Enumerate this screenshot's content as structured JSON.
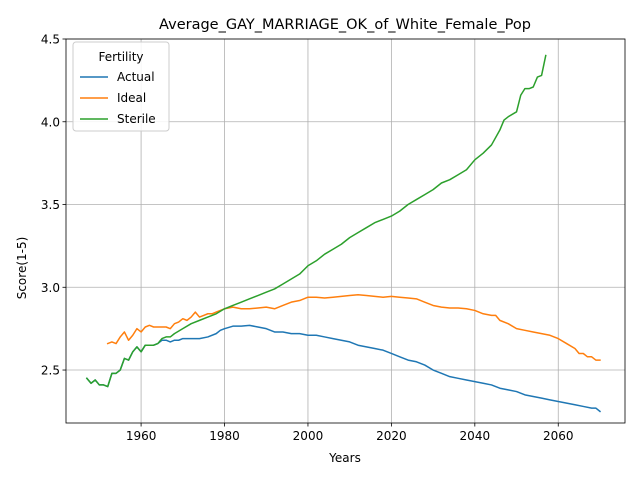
{
  "chart_data": {
    "type": "line",
    "title": "Average_GAY_MARRIAGE_OK_of_White_Female_Pop",
    "xlabel": "Years",
    "ylabel": "Score(1-5)",
    "xlim": [
      1942,
      2076
    ],
    "ylim": [
      2.18,
      4.5
    ],
    "xticks": [
      1960,
      1980,
      2000,
      2020,
      2040,
      2060
    ],
    "yticks": [
      2.5,
      3.0,
      3.5,
      4.0,
      4.5
    ],
    "xtick_labels": [
      "1960",
      "1980",
      "2000",
      "2020",
      "2040",
      "2060"
    ],
    "ytick_labels": [
      "2.5",
      "3.0",
      "3.5",
      "4.0",
      "4.5"
    ],
    "grid": true,
    "legend": {
      "title": "Fertility",
      "placement": "top-left",
      "entries": [
        "Actual",
        "Ideal",
        "Sterile"
      ]
    },
    "series": [
      {
        "name": "Actual",
        "color": "#1f77b4",
        "points": [
          [
            1947,
            2.45
          ],
          [
            1948,
            2.42
          ],
          [
            1949,
            2.44
          ],
          [
            1950,
            2.41
          ],
          [
            1951,
            2.41
          ],
          [
            1952,
            2.4
          ],
          [
            1953,
            2.48
          ],
          [
            1954,
            2.48
          ],
          [
            1955,
            2.5
          ],
          [
            1956,
            2.57
          ],
          [
            1957,
            2.56
          ],
          [
            1958,
            2.61
          ],
          [
            1959,
            2.64
          ],
          [
            1960,
            2.61
          ],
          [
            1961,
            2.65
          ],
          [
            1962,
            2.65
          ],
          [
            1963,
            2.65
          ],
          [
            1964,
            2.66
          ],
          [
            1965,
            2.68
          ],
          [
            1966,
            2.68
          ],
          [
            1967,
            2.67
          ],
          [
            1968,
            2.68
          ],
          [
            1969,
            2.68
          ],
          [
            1970,
            2.69
          ],
          [
            1972,
            2.69
          ],
          [
            1974,
            2.69
          ],
          [
            1976,
            2.7
          ],
          [
            1978,
            2.72
          ],
          [
            1979,
            2.74
          ],
          [
            1980,
            2.75
          ],
          [
            1982,
            2.765
          ],
          [
            1984,
            2.765
          ],
          [
            1986,
            2.77
          ],
          [
            1988,
            2.76
          ],
          [
            1990,
            2.75
          ],
          [
            1992,
            2.73
          ],
          [
            1994,
            2.73
          ],
          [
            1996,
            2.72
          ],
          [
            1998,
            2.72
          ],
          [
            2000,
            2.71
          ],
          [
            2002,
            2.71
          ],
          [
            2004,
            2.7
          ],
          [
            2006,
            2.69
          ],
          [
            2008,
            2.68
          ],
          [
            2010,
            2.67
          ],
          [
            2012,
            2.65
          ],
          [
            2014,
            2.64
          ],
          [
            2016,
            2.63
          ],
          [
            2018,
            2.62
          ],
          [
            2020,
            2.6
          ],
          [
            2022,
            2.58
          ],
          [
            2024,
            2.56
          ],
          [
            2026,
            2.55
          ],
          [
            2028,
            2.53
          ],
          [
            2030,
            2.5
          ],
          [
            2032,
            2.48
          ],
          [
            2034,
            2.46
          ],
          [
            2036,
            2.45
          ],
          [
            2038,
            2.44
          ],
          [
            2040,
            2.43
          ],
          [
            2042,
            2.42
          ],
          [
            2044,
            2.41
          ],
          [
            2046,
            2.39
          ],
          [
            2048,
            2.38
          ],
          [
            2050,
            2.37
          ],
          [
            2052,
            2.35
          ],
          [
            2054,
            2.34
          ],
          [
            2056,
            2.33
          ],
          [
            2058,
            2.32
          ],
          [
            2060,
            2.31
          ],
          [
            2062,
            2.3
          ],
          [
            2064,
            2.29
          ],
          [
            2066,
            2.28
          ],
          [
            2068,
            2.27
          ],
          [
            2069,
            2.27
          ],
          [
            2070,
            2.25
          ]
        ]
      },
      {
        "name": "Ideal",
        "color": "#ff7f0e",
        "points": [
          [
            1952,
            2.66
          ],
          [
            1953,
            2.67
          ],
          [
            1954,
            2.66
          ],
          [
            1955,
            2.7
          ],
          [
            1956,
            2.73
          ],
          [
            1957,
            2.68
          ],
          [
            1958,
            2.71
          ],
          [
            1959,
            2.75
          ],
          [
            1960,
            2.73
          ],
          [
            1961,
            2.76
          ],
          [
            1962,
            2.77
          ],
          [
            1963,
            2.76
          ],
          [
            1964,
            2.76
          ],
          [
            1965,
            2.76
          ],
          [
            1966,
            2.76
          ],
          [
            1967,
            2.75
          ],
          [
            1968,
            2.78
          ],
          [
            1969,
            2.79
          ],
          [
            1970,
            2.81
          ],
          [
            1971,
            2.8
          ],
          [
            1972,
            2.82
          ],
          [
            1973,
            2.85
          ],
          [
            1974,
            2.82
          ],
          [
            1975,
            2.83
          ],
          [
            1976,
            2.84
          ],
          [
            1977,
            2.84
          ],
          [
            1978,
            2.85
          ],
          [
            1980,
            2.87
          ],
          [
            1982,
            2.88
          ],
          [
            1984,
            2.87
          ],
          [
            1986,
            2.87
          ],
          [
            1988,
            2.875
          ],
          [
            1990,
            2.88
          ],
          [
            1992,
            2.87
          ],
          [
            1994,
            2.89
          ],
          [
            1996,
            2.91
          ],
          [
            1998,
            2.92
          ],
          [
            2000,
            2.94
          ],
          [
            2002,
            2.94
          ],
          [
            2004,
            2.935
          ],
          [
            2006,
            2.94
          ],
          [
            2008,
            2.945
          ],
          [
            2010,
            2.95
          ],
          [
            2012,
            2.955
          ],
          [
            2014,
            2.95
          ],
          [
            2016,
            2.945
          ],
          [
            2018,
            2.94
          ],
          [
            2020,
            2.945
          ],
          [
            2022,
            2.94
          ],
          [
            2024,
            2.935
          ],
          [
            2026,
            2.93
          ],
          [
            2028,
            2.91
          ],
          [
            2030,
            2.89
          ],
          [
            2032,
            2.88
          ],
          [
            2034,
            2.875
          ],
          [
            2036,
            2.875
          ],
          [
            2038,
            2.87
          ],
          [
            2040,
            2.86
          ],
          [
            2042,
            2.84
          ],
          [
            2044,
            2.83
          ],
          [
            2045,
            2.83
          ],
          [
            2046,
            2.8
          ],
          [
            2048,
            2.78
          ],
          [
            2050,
            2.75
          ],
          [
            2052,
            2.74
          ],
          [
            2054,
            2.73
          ],
          [
            2056,
            2.72
          ],
          [
            2058,
            2.71
          ],
          [
            2060,
            2.69
          ],
          [
            2062,
            2.66
          ],
          [
            2064,
            2.63
          ],
          [
            2065,
            2.6
          ],
          [
            2066,
            2.6
          ],
          [
            2067,
            2.58
          ],
          [
            2068,
            2.58
          ],
          [
            2069,
            2.56
          ],
          [
            2070,
            2.56
          ]
        ]
      },
      {
        "name": "Sterile",
        "color": "#2ca02c",
        "points": [
          [
            1947,
            2.45
          ],
          [
            1948,
            2.42
          ],
          [
            1949,
            2.44
          ],
          [
            1950,
            2.41
          ],
          [
            1951,
            2.41
          ],
          [
            1952,
            2.4
          ],
          [
            1953,
            2.48
          ],
          [
            1954,
            2.48
          ],
          [
            1955,
            2.5
          ],
          [
            1956,
            2.57
          ],
          [
            1957,
            2.56
          ],
          [
            1958,
            2.61
          ],
          [
            1959,
            2.64
          ],
          [
            1960,
            2.61
          ],
          [
            1961,
            2.65
          ],
          [
            1962,
            2.65
          ],
          [
            1963,
            2.65
          ],
          [
            1964,
            2.66
          ],
          [
            1965,
            2.69
          ],
          [
            1966,
            2.7
          ],
          [
            1967,
            2.7
          ],
          [
            1968,
            2.72
          ],
          [
            1970,
            2.75
          ],
          [
            1972,
            2.78
          ],
          [
            1974,
            2.8
          ],
          [
            1976,
            2.82
          ],
          [
            1978,
            2.84
          ],
          [
            1980,
            2.87
          ],
          [
            1982,
            2.89
          ],
          [
            1984,
            2.91
          ],
          [
            1986,
            2.93
          ],
          [
            1988,
            2.95
          ],
          [
            1990,
            2.97
          ],
          [
            1992,
            2.99
          ],
          [
            1994,
            3.02
          ],
          [
            1996,
            3.05
          ],
          [
            1998,
            3.08
          ],
          [
            2000,
            3.13
          ],
          [
            2002,
            3.16
          ],
          [
            2004,
            3.2
          ],
          [
            2006,
            3.23
          ],
          [
            2008,
            3.26
          ],
          [
            2010,
            3.3
          ],
          [
            2012,
            3.33
          ],
          [
            2014,
            3.36
          ],
          [
            2016,
            3.39
          ],
          [
            2018,
            3.41
          ],
          [
            2020,
            3.43
          ],
          [
            2022,
            3.46
          ],
          [
            2024,
            3.5
          ],
          [
            2026,
            3.53
          ],
          [
            2028,
            3.56
          ],
          [
            2030,
            3.59
          ],
          [
            2032,
            3.63
          ],
          [
            2034,
            3.65
          ],
          [
            2036,
            3.68
          ],
          [
            2038,
            3.71
          ],
          [
            2040,
            3.77
          ],
          [
            2042,
            3.81
          ],
          [
            2044,
            3.86
          ],
          [
            2046,
            3.95
          ],
          [
            2047,
            4.01
          ],
          [
            2048,
            4.03
          ],
          [
            2050,
            4.06
          ],
          [
            2051,
            4.16
          ],
          [
            2052,
            4.2
          ],
          [
            2053,
            4.2
          ],
          [
            2054,
            4.21
          ],
          [
            2055,
            4.27
          ],
          [
            2056,
            4.28
          ],
          [
            2057,
            4.4
          ]
        ]
      }
    ]
  }
}
